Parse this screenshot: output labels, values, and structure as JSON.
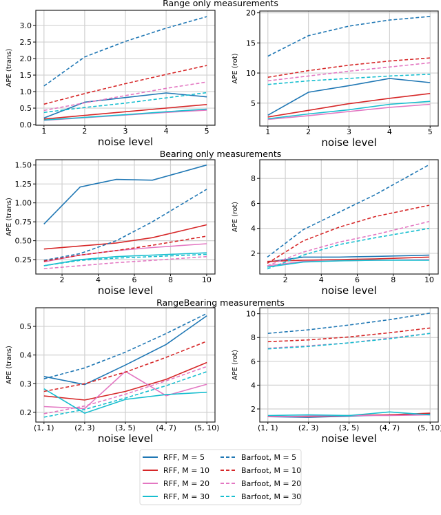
{
  "colors": {
    "M5": "#1f77b4",
    "M10": "#d62728",
    "M20": "#e377c2",
    "M30": "#17becf"
  },
  "legend": {
    "placement": "bottom-center",
    "entries": [
      {
        "label": "RFF, M = 5",
        "color": "#1f77b4",
        "style": "solid"
      },
      {
        "label": "Barfoot, M = 5",
        "color": "#1f77b4",
        "style": "dashed"
      },
      {
        "label": "RFF, M = 10",
        "color": "#d62728",
        "style": "solid"
      },
      {
        "label": "Barfoot, M = 10",
        "color": "#d62728",
        "style": "dashed"
      },
      {
        "label": "RFF, M = 20",
        "color": "#e377c2",
        "style": "solid"
      },
      {
        "label": "Barfoot, M = 20",
        "color": "#e377c2",
        "style": "dashed"
      },
      {
        "label": "RFF, M = 30",
        "color": "#17becf",
        "style": "solid"
      },
      {
        "label": "Barfoot, M = 30",
        "color": "#17becf",
        "style": "dashed"
      }
    ]
  },
  "row_titles": [
    "Range only measurements",
    "Bearing only measurements",
    "RangeBearing measurements"
  ],
  "chart_data": [
    {
      "type": "line",
      "xlabel": "noise level",
      "ylabel": "APE (trans)",
      "grid": true,
      "x": [
        1,
        2,
        3,
        4,
        5
      ],
      "xticks": [
        1,
        2,
        3,
        4,
        5
      ],
      "xlim": [
        0.8,
        5.2
      ],
      "yticks": [
        0.0,
        0.5,
        1.0,
        1.5,
        2.0,
        2.5,
        3.0
      ],
      "ytick_labels": [
        "0.0",
        "0.5",
        "1.0",
        "1.5",
        "2.0",
        "2.5",
        "3.0"
      ],
      "ylim": [
        -0.02,
        3.46
      ],
      "series": [
        {
          "name": "RFF, M = 5",
          "values": [
            0.2,
            0.68,
            0.82,
            0.96,
            0.84
          ]
        },
        {
          "name": "RFF, M = 10",
          "values": [
            0.17,
            0.28,
            0.39,
            0.5,
            0.61
          ]
        },
        {
          "name": "RFF, M = 20",
          "values": [
            0.13,
            0.21,
            0.29,
            0.37,
            0.44
          ]
        },
        {
          "name": "RFF, M = 30",
          "values": [
            0.14,
            0.22,
            0.3,
            0.39,
            0.47
          ]
        },
        {
          "name": "Barfoot, M = 5",
          "values": [
            1.17,
            2.05,
            2.52,
            2.92,
            3.27
          ]
        },
        {
          "name": "Barfoot, M = 10",
          "values": [
            0.62,
            0.94,
            1.24,
            1.52,
            1.79
          ]
        },
        {
          "name": "Barfoot, M = 20",
          "values": [
            0.43,
            0.66,
            0.88,
            1.1,
            1.29
          ]
        },
        {
          "name": "Barfoot, M = 30",
          "values": [
            0.37,
            0.52,
            0.65,
            0.81,
            0.97
          ]
        }
      ]
    },
    {
      "type": "line",
      "xlabel": "noise level",
      "ylabel": "APE (rot)",
      "grid": true,
      "x": [
        1,
        2,
        3,
        4,
        5
      ],
      "xticks": [
        1,
        2,
        3,
        4,
        5
      ],
      "xlim": [
        0.8,
        5.2
      ],
      "yticks": [
        5,
        10,
        15,
        20
      ],
      "ytick_labels": [
        "5",
        "10",
        "15",
        "20"
      ],
      "ylim": [
        1.2,
        20.3
      ],
      "series": [
        {
          "name": "RFF, M = 5",
          "values": [
            3.0,
            6.8,
            7.9,
            9.1,
            8.4
          ]
        },
        {
          "name": "RFF, M = 10",
          "values": [
            2.7,
            3.8,
            4.9,
            5.8,
            6.6
          ]
        },
        {
          "name": "RFF, M = 20",
          "values": [
            2.3,
            2.9,
            3.6,
            4.3,
            4.8
          ]
        },
        {
          "name": "RFF, M = 30",
          "values": [
            2.4,
            3.2,
            3.9,
            4.8,
            5.3
          ]
        },
        {
          "name": "Barfoot, M = 5",
          "values": [
            12.8,
            16.2,
            17.8,
            18.8,
            19.4
          ]
        },
        {
          "name": "Barfoot, M = 10",
          "values": [
            9.3,
            10.4,
            11.3,
            12.0,
            12.5
          ]
        },
        {
          "name": "Barfoot, M = 20",
          "values": [
            8.7,
            9.5,
            10.3,
            11.0,
            11.7
          ]
        },
        {
          "name": "Barfoot, M = 30",
          "values": [
            8.1,
            8.7,
            9.1,
            9.5,
            9.8
          ]
        }
      ]
    },
    {
      "type": "line",
      "xlabel": "noise level",
      "ylabel": "APE (trans)",
      "grid": true,
      "x": [
        1,
        3,
        5,
        7,
        10
      ],
      "xticks": [
        2,
        4,
        6,
        8,
        10
      ],
      "xlim": [
        0.55,
        10.46
      ],
      "yticks": [
        0.25,
        0.5,
        0.75,
        1.0,
        1.25,
        1.5
      ],
      "ytick_labels": [
        "0.25",
        "0.50",
        "0.75",
        "1.00",
        "1.25",
        "1.50"
      ],
      "ylim": [
        0.06,
        1.57
      ],
      "series": [
        {
          "name": "RFF, M = 5",
          "values": [
            0.72,
            1.21,
            1.31,
            1.3,
            1.5
          ]
        },
        {
          "name": "RFF, M = 10",
          "values": [
            0.39,
            0.43,
            0.47,
            0.54,
            0.71
          ]
        },
        {
          "name": "RFF, M = 20",
          "values": [
            0.22,
            0.31,
            0.37,
            0.41,
            0.46
          ]
        },
        {
          "name": "RFF, M = 30",
          "values": [
            0.17,
            0.25,
            0.29,
            0.31,
            0.34
          ]
        },
        {
          "name": "Barfoot, M = 5",
          "values": [
            0.24,
            0.33,
            0.5,
            0.75,
            1.18
          ]
        },
        {
          "name": "Barfoot, M = 10",
          "values": [
            0.23,
            0.31,
            0.37,
            0.44,
            0.56
          ]
        },
        {
          "name": "Barfoot, M = 20",
          "values": [
            0.13,
            0.17,
            0.21,
            0.24,
            0.29
          ]
        },
        {
          "name": "Barfoot, M = 30",
          "values": [
            0.17,
            0.24,
            0.27,
            0.29,
            0.32
          ]
        }
      ]
    },
    {
      "type": "line",
      "xlabel": "noise level",
      "ylabel": "APE (rot)",
      "grid": true,
      "x": [
        1,
        3,
        5,
        7,
        10
      ],
      "xticks": [
        2,
        4,
        6,
        8,
        10
      ],
      "xlim": [
        0.58,
        10.5
      ],
      "yticks": [
        2,
        4,
        6,
        8
      ],
      "ytick_labels": [
        "2",
        "4",
        "6",
        "8"
      ],
      "ylim": [
        0.34,
        9.5
      ],
      "series": [
        {
          "name": "RFF, M = 5",
          "values": [
            1.3,
            1.7,
            1.7,
            1.75,
            1.85
          ]
        },
        {
          "name": "RFF, M = 10",
          "values": [
            1.35,
            1.45,
            1.5,
            1.55,
            1.7
          ]
        },
        {
          "name": "RFF, M = 20",
          "values": [
            1.0,
            1.35,
            1.4,
            1.45,
            1.5
          ]
        },
        {
          "name": "RFF, M = 30",
          "values": [
            0.9,
            1.3,
            1.4,
            1.45,
            1.45
          ]
        },
        {
          "name": "Barfoot, M = 5",
          "values": [
            1.7,
            3.9,
            5.3,
            6.7,
            9.1
          ]
        },
        {
          "name": "Barfoot, M = 10",
          "values": [
            1.2,
            3.0,
            4.1,
            4.95,
            5.85
          ]
        },
        {
          "name": "Barfoot, M = 20",
          "values": [
            1.0,
            2.1,
            2.9,
            3.5,
            4.55
          ]
        },
        {
          "name": "Barfoot, M = 30",
          "values": [
            0.75,
            1.85,
            2.7,
            3.25,
            4.0
          ]
        }
      ]
    },
    {
      "type": "line",
      "xlabel": "noise level",
      "ylabel": "APE (trans)",
      "grid": true,
      "categories": [
        "(1, 1)",
        "(2, 3)",
        "(3, 5)",
        "(4, 7)",
        "(5, 10)"
      ],
      "yticks": [
        0.2,
        0.3,
        0.4,
        0.5
      ],
      "ytick_labels": [
        "0.2",
        "0.3",
        "0.4",
        "0.5"
      ],
      "ylim": [
        0.166,
        0.565
      ],
      "series": [
        {
          "name": "RFF, M = 5",
          "values": [
            0.325,
            0.297,
            0.365,
            0.437,
            0.537
          ]
        },
        {
          "name": "RFF, M = 10",
          "values": [
            0.257,
            0.243,
            0.273,
            0.315,
            0.374
          ]
        },
        {
          "name": "RFF, M = 20",
          "values": [
            0.22,
            0.213,
            0.343,
            0.258,
            0.298
          ]
        },
        {
          "name": "RFF, M = 30",
          "values": [
            0.282,
            0.197,
            0.245,
            0.262,
            0.27
          ]
        },
        {
          "name": "Barfoot, M = 5",
          "values": [
            0.317,
            0.355,
            0.41,
            0.475,
            0.545
          ]
        },
        {
          "name": "Barfoot, M = 10",
          "values": [
            0.273,
            0.3,
            0.34,
            0.392,
            0.448
          ]
        },
        {
          "name": "Barfoot, M = 20",
          "values": [
            0.195,
            0.222,
            0.263,
            0.31,
            0.36
          ]
        },
        {
          "name": "Barfoot, M = 30",
          "values": [
            0.183,
            0.21,
            0.25,
            0.293,
            0.342
          ]
        }
      ]
    },
    {
      "type": "line",
      "xlabel": "noise level",
      "ylabel": "APE (rot)",
      "grid": true,
      "categories": [
        "(1, 1)",
        "(2, 3)",
        "(3, 5)",
        "(4, 7)",
        "(5, 10)"
      ],
      "yticks": [
        2,
        4,
        6,
        8,
        10
      ],
      "ytick_labels": [
        "2",
        "4",
        "6",
        "8",
        "10"
      ],
      "ylim": [
        0.9,
        10.5
      ],
      "series": [
        {
          "name": "RFF, M = 5",
          "values": [
            1.35,
            1.3,
            1.4,
            1.5,
            1.6
          ]
        },
        {
          "name": "RFF, M = 10",
          "values": [
            1.4,
            1.35,
            1.45,
            1.5,
            1.65
          ]
        },
        {
          "name": "RFF, M = 20",
          "values": [
            1.35,
            1.4,
            1.45,
            1.45,
            1.5
          ]
        },
        {
          "name": "RFF, M = 30",
          "values": [
            1.45,
            1.5,
            1.45,
            1.75,
            1.5
          ]
        },
        {
          "name": "Barfoot, M = 5",
          "values": [
            8.35,
            8.65,
            9.05,
            9.5,
            10.05
          ]
        },
        {
          "name": "Barfoot, M = 10",
          "values": [
            7.65,
            7.8,
            8.05,
            8.4,
            8.8
          ]
        },
        {
          "name": "Barfoot, M = 20",
          "values": [
            7.1,
            7.3,
            7.55,
            7.95,
            8.35
          ]
        },
        {
          "name": "Barfoot, M = 30",
          "values": [
            7.05,
            7.25,
            7.55,
            7.9,
            8.35
          ]
        }
      ]
    }
  ]
}
